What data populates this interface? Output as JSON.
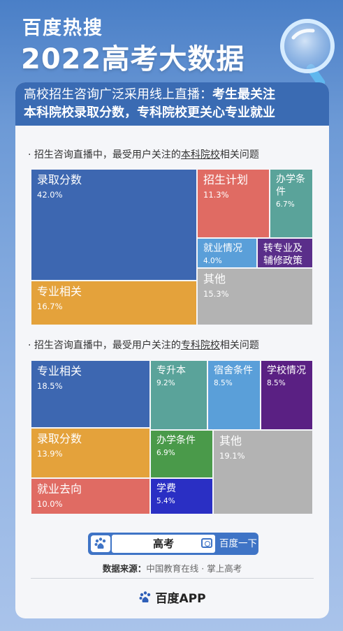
{
  "header": {
    "brand": "百度热搜",
    "title": "2022高考大数据"
  },
  "banner": {
    "line1_plain": "高校招生咨询广泛采用线上直播：",
    "line1_bold": "考生最关注",
    "line2_bold": "本科院校录取分数，专科院校更关心专业就业"
  },
  "section1": {
    "prefix": "· 招生咨询直播中，最受用户关注的",
    "underlined": "本科院校",
    "suffix": "相关问题"
  },
  "chart_data": [
    {
      "type": "treemap",
      "items": [
        {
          "name": "录取分数",
          "value": 42.0,
          "label": "42.0%",
          "color": "#3d67b1"
        },
        {
          "name": "专业相关",
          "value": 16.7,
          "label": "16.7%",
          "color": "#e4a23b"
        },
        {
          "name": "招生计划",
          "value": 11.3,
          "label": "11.3%",
          "color": "#e06b63"
        },
        {
          "name": "办学条件",
          "value": 6.7,
          "label": "6.7%",
          "color": "#5aa39a"
        },
        {
          "name": "就业情况",
          "value": 4.0,
          "label": "4.0%",
          "color": "#5a9fd9"
        },
        {
          "name": "转专业及辅修政策",
          "value": 4.0,
          "label": "4.0%",
          "color": "#5a2e8a"
        },
        {
          "name": "其他",
          "value": 15.3,
          "label": "15.3%",
          "color": "#b3b3b3"
        }
      ]
    },
    {
      "type": "treemap",
      "items": [
        {
          "name": "专业相关",
          "value": 18.5,
          "label": "18.5%",
          "color": "#3d67b1"
        },
        {
          "name": "录取分数",
          "value": 13.9,
          "label": "13.9%",
          "color": "#e4a23b"
        },
        {
          "name": "就业去向",
          "value": 10.0,
          "label": "10.0%",
          "color": "#e06b63"
        },
        {
          "name": "专升本",
          "value": 9.2,
          "label": "9.2%",
          "color": "#5aa39a"
        },
        {
          "name": "宿舍条件",
          "value": 8.5,
          "label": "8.5%",
          "color": "#5a9fd9"
        },
        {
          "name": "学校情况",
          "value": 8.5,
          "label": "8.5%",
          "color": "#5a2083"
        },
        {
          "name": "办学条件",
          "value": 6.9,
          "label": "6.9%",
          "color": "#4a9a4a"
        },
        {
          "name": "学费",
          "value": 5.4,
          "label": "5.4%",
          "color": "#2a2fc4"
        },
        {
          "name": "其他",
          "value": 19.1,
          "label": "19.1%",
          "color": "#b3b3b3"
        }
      ]
    }
  ],
  "section2": {
    "prefix": "· 招生咨询直播中，最受用户关注的",
    "underlined": "专科院校",
    "suffix": "相关问题"
  },
  "search": {
    "query": "高考",
    "button": "百度一下",
    "logo_icon": "baidu-paw-icon",
    "camera_icon": "camera-icon"
  },
  "footer": {
    "source_label": "数据来源：",
    "source_value": "中国教育在线 · 掌上高考",
    "app_name": "百度APP"
  }
}
